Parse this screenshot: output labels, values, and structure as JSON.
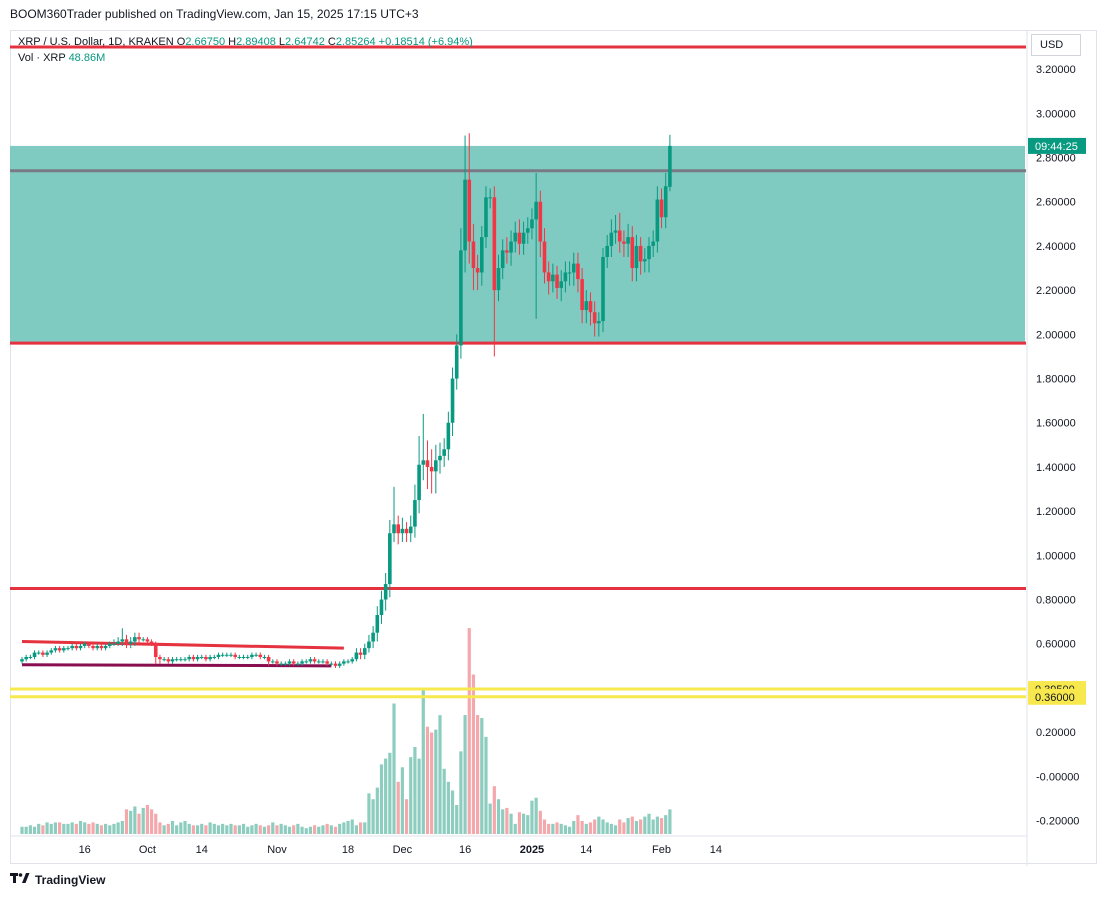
{
  "header": {
    "publisher_line": "BOOM360Trader published on TradingView.com, Jan 15, 2025 17:15 UTC+3"
  },
  "legend": {
    "symbol": "XRP / U.S. Dollar, 1D, KRAKEN",
    "o_label": "O",
    "o_value": "2.66750",
    "h_label": "H",
    "h_value": "2.89408",
    "l_label": "L",
    "l_value": "2.64742",
    "c_label": "C",
    "c_value": "2.85264",
    "change": "+0.18514 (+6.94%)",
    "vol_label": "Vol · XRP",
    "vol_value": "48.86M"
  },
  "currency": "USD",
  "colors": {
    "up": "#089981",
    "down": "#f23645",
    "zone": "#80cbc1",
    "hline": "#e5323f",
    "gray_line": "#787b86",
    "purple": "#880e4f",
    "yellow": "#f7e84e",
    "vol_up": "#8dcdbf",
    "vol_down": "#f4a8ac"
  },
  "footer": {
    "brand": "TradingView",
    "logo_icon": "tv-logo-icon"
  },
  "chart_data": {
    "type": "candlestick",
    "title": "XRP / U.S. Dollar, 1D, KRAKEN",
    "ylim": [
      -0.27,
      3.35
    ],
    "y_ticks": [
      "3.20000",
      "3.00000",
      "2.80000",
      "2.60000",
      "2.40000",
      "2.20000",
      "2.00000",
      "1.80000",
      "1.60000",
      "1.40000",
      "1.20000",
      "1.00000",
      "0.80000",
      "0.60000",
      "0.20000",
      "-0.00000",
      "-0.20000"
    ],
    "y_tick_values": [
      3.2,
      3.0,
      2.8,
      2.6,
      2.4,
      2.2,
      2.0,
      1.8,
      1.6,
      1.4,
      1.2,
      1.0,
      0.8,
      0.6,
      0.2,
      0.0,
      -0.2
    ],
    "x_ticks": [
      "16",
      "Oct",
      "14",
      "Nov",
      "18",
      "Dec",
      "16",
      "2025",
      "14",
      "Feb",
      "14"
    ],
    "x_tick_dates": [
      "2024-09-16",
      "2024-10-01",
      "2024-10-14",
      "2024-11-01",
      "2024-11-18",
      "2024-12-01",
      "2024-12-16",
      "2025-01-01",
      "2025-01-14",
      "2025-02-01",
      "2025-02-14"
    ],
    "first_date": "2024-09-01",
    "last_candle_date": "2025-01-15",
    "price_labels": [
      {
        "text": "09:44:25",
        "value": 2.85264,
        "color": "#089981"
      },
      {
        "text": "0.39500",
        "value": 0.395,
        "color": "#f7e84e"
      },
      {
        "text": "0.36000",
        "value": 0.36,
        "color": "#f7e84e"
      }
    ],
    "horizontal_lines": [
      {
        "value": 3.3,
        "color": "#e5323f"
      },
      {
        "value": 2.74,
        "color": "#787b86"
      },
      {
        "value": 1.96,
        "color": "#e5323f"
      },
      {
        "value": 0.85,
        "color": "#e5323f"
      },
      {
        "value": 0.395,
        "color": "#f7e84e"
      },
      {
        "value": 0.36,
        "color": "#f7e84e"
      }
    ],
    "zone": {
      "top": 2.85264,
      "bottom": 1.96
    },
    "trendlines": [
      {
        "start": [
          "2024-09-01",
          0.61
        ],
        "end": [
          "2024-11-17",
          0.58
        ],
        "color": "#e5323f"
      },
      {
        "start": [
          "2024-09-01",
          0.505
        ],
        "end": [
          "2024-11-14",
          0.5
        ],
        "color": "#880e4f"
      }
    ],
    "candles_close": [
      0.53,
      0.54,
      0.54,
      0.56,
      0.56,
      0.55,
      0.56,
      0.57,
      0.58,
      0.57,
      0.58,
      0.58,
      0.59,
      0.58,
      0.59,
      0.6,
      0.59,
      0.58,
      0.59,
      0.58,
      0.59,
      0.6,
      0.6,
      0.61,
      0.62,
      0.6,
      0.61,
      0.63,
      0.62,
      0.62,
      0.61,
      0.6,
      0.54,
      0.53,
      0.53,
      0.52,
      0.53,
      0.53,
      0.53,
      0.53,
      0.54,
      0.53,
      0.54,
      0.54,
      0.53,
      0.54,
      0.54,
      0.55,
      0.55,
      0.55,
      0.55,
      0.54,
      0.54,
      0.54,
      0.54,
      0.55,
      0.55,
      0.54,
      0.54,
      0.52,
      0.52,
      0.51,
      0.51,
      0.51,
      0.52,
      0.51,
      0.51,
      0.52,
      0.52,
      0.53,
      0.52,
      0.52,
      0.52,
      0.51,
      0.51,
      0.5,
      0.51,
      0.52,
      0.52,
      0.53,
      0.56,
      0.55,
      0.58,
      0.61,
      0.65,
      0.73,
      0.8,
      0.87,
      1.1,
      1.14,
      1.1,
      1.12,
      1.1,
      1.13,
      1.25,
      1.41,
      1.43,
      1.4,
      1.38,
      1.43,
      1.45,
      1.48,
      1.6,
      1.8,
      1.95,
      2.38,
      2.7,
      2.42,
      2.3,
      2.28,
      2.44,
      2.62,
      2.62,
      2.2,
      2.3,
      2.38,
      2.37,
      2.42,
      2.46,
      2.41,
      2.46,
      2.48,
      2.52,
      2.6,
      2.42,
      2.28,
      2.24,
      2.27,
      2.21,
      2.24,
      2.28,
      2.28,
      2.32,
      2.25,
      2.11,
      2.15,
      2.1,
      2.05,
      2.06,
      2.35,
      2.4,
      2.46,
      2.47,
      2.42,
      2.41,
      2.44,
      2.3,
      2.4,
      2.33,
      2.34,
      2.4,
      2.42,
      2.61,
      2.53,
      2.67,
      2.85264
    ],
    "candles_open": [
      0.52,
      0.53,
      0.54,
      0.54,
      0.56,
      0.56,
      0.55,
      0.56,
      0.57,
      0.58,
      0.57,
      0.58,
      0.58,
      0.59,
      0.58,
      0.59,
      0.6,
      0.59,
      0.58,
      0.59,
      0.58,
      0.59,
      0.6,
      0.6,
      0.61,
      0.62,
      0.6,
      0.61,
      0.63,
      0.62,
      0.62,
      0.61,
      0.6,
      0.54,
      0.53,
      0.53,
      0.52,
      0.53,
      0.53,
      0.53,
      0.53,
      0.54,
      0.53,
      0.54,
      0.54,
      0.53,
      0.54,
      0.54,
      0.55,
      0.55,
      0.55,
      0.55,
      0.54,
      0.54,
      0.54,
      0.54,
      0.55,
      0.55,
      0.54,
      0.54,
      0.52,
      0.52,
      0.51,
      0.51,
      0.51,
      0.52,
      0.51,
      0.51,
      0.52,
      0.52,
      0.53,
      0.52,
      0.52,
      0.52,
      0.51,
      0.51,
      0.5,
      0.51,
      0.52,
      0.52,
      0.53,
      0.56,
      0.55,
      0.58,
      0.61,
      0.65,
      0.73,
      0.8,
      0.87,
      1.1,
      1.14,
      1.1,
      1.12,
      1.1,
      1.13,
      1.25,
      1.41,
      1.43,
      1.4,
      1.38,
      1.43,
      1.45,
      1.48,
      1.6,
      1.8,
      1.95,
      2.38,
      2.7,
      2.42,
      2.3,
      2.28,
      2.44,
      2.62,
      2.62,
      2.2,
      2.3,
      2.38,
      2.37,
      2.42,
      2.46,
      2.41,
      2.46,
      2.48,
      2.52,
      2.6,
      2.42,
      2.28,
      2.24,
      2.27,
      2.21,
      2.24,
      2.28,
      2.28,
      2.32,
      2.25,
      2.11,
      2.15,
      2.1,
      2.05,
      2.06,
      2.35,
      2.4,
      2.46,
      2.47,
      2.42,
      2.41,
      2.44,
      2.3,
      2.4,
      2.33,
      2.34,
      2.4,
      2.42,
      2.61,
      2.53,
      2.6675
    ],
    "candles_high_pad": [
      0.01,
      0.01,
      0.01,
      0.01,
      0.01,
      0.01,
      0.01,
      0.01,
      0.01,
      0.01,
      0.01,
      0.01,
      0.01,
      0.01,
      0.01,
      0.01,
      0.01,
      0.01,
      0.01,
      0.01,
      0.01,
      0.01,
      0.02,
      0.02,
      0.05,
      0.02,
      0.02,
      0.02,
      0.02,
      0.01,
      0.01,
      0.01,
      0.01,
      0.01,
      0.01,
      0.01,
      0.01,
      0.01,
      0.01,
      0.01,
      0.01,
      0.01,
      0.01,
      0.01,
      0.01,
      0.01,
      0.01,
      0.01,
      0.01,
      0.01,
      0.01,
      0.01,
      0.01,
      0.01,
      0.01,
      0.01,
      0.01,
      0.01,
      0.01,
      0.01,
      0.01,
      0.01,
      0.01,
      0.01,
      0.01,
      0.01,
      0.01,
      0.01,
      0.01,
      0.01,
      0.01,
      0.01,
      0.01,
      0.01,
      0.01,
      0.01,
      0.01,
      0.01,
      0.01,
      0.01,
      0.02,
      0.02,
      0.02,
      0.03,
      0.03,
      0.04,
      0.04,
      0.05,
      0.06,
      0.17,
      0.04,
      0.05,
      0.03,
      0.05,
      0.07,
      0.13,
      0.21,
      0.09,
      0.08,
      0.07,
      0.06,
      0.05,
      0.05,
      0.05,
      0.05,
      0.1,
      0.2,
      0.21,
      0.08,
      0.06,
      0.05,
      0.05,
      0.04,
      0.05,
      0.06,
      0.05,
      0.06,
      0.05,
      0.05,
      0.06,
      0.05,
      0.05,
      0.05,
      0.13,
      0.05,
      0.06,
      0.05,
      0.05,
      0.04,
      0.05,
      0.05,
      0.05,
      0.05,
      0.05,
      0.05,
      0.05,
      0.04,
      0.05,
      0.04,
      0.04,
      0.05,
      0.06,
      0.07,
      0.08,
      0.05,
      0.06,
      0.05,
      0.05,
      0.04,
      0.05,
      0.04,
      0.05,
      0.06,
      0.05,
      0.06,
      0.05,
      0.06,
      0.04
    ],
    "candles_low_pad": [
      0.01,
      0.01,
      0.01,
      0.01,
      0.01,
      0.01,
      0.01,
      0.01,
      0.01,
      0.01,
      0.01,
      0.01,
      0.01,
      0.01,
      0.01,
      0.01,
      0.01,
      0.01,
      0.01,
      0.01,
      0.01,
      0.01,
      0.01,
      0.01,
      0.02,
      0.02,
      0.02,
      0.02,
      0.02,
      0.01,
      0.01,
      0.01,
      0.03,
      0.02,
      0.01,
      0.01,
      0.01,
      0.01,
      0.01,
      0.01,
      0.01,
      0.01,
      0.01,
      0.01,
      0.01,
      0.01,
      0.01,
      0.01,
      0.01,
      0.01,
      0.01,
      0.01,
      0.01,
      0.01,
      0.01,
      0.01,
      0.01,
      0.01,
      0.01,
      0.02,
      0.01,
      0.01,
      0.01,
      0.01,
      0.01,
      0.01,
      0.01,
      0.01,
      0.01,
      0.01,
      0.01,
      0.01,
      0.01,
      0.01,
      0.01,
      0.01,
      0.01,
      0.01,
      0.01,
      0.01,
      0.01,
      0.02,
      0.02,
      0.02,
      0.03,
      0.04,
      0.04,
      0.05,
      0.06,
      0.04,
      0.05,
      0.04,
      0.04,
      0.04,
      0.05,
      0.06,
      0.07,
      0.1,
      0.1,
      0.1,
      0.06,
      0.05,
      0.05,
      0.06,
      0.05,
      0.06,
      0.1,
      0.1,
      0.1,
      0.08,
      0.06,
      0.05,
      0.05,
      0.3,
      0.05,
      0.05,
      0.05,
      0.06,
      0.05,
      0.05,
      0.05,
      0.05,
      0.05,
      0.45,
      0.07,
      0.05,
      0.06,
      0.05,
      0.05,
      0.06,
      0.05,
      0.06,
      0.06,
      0.06,
      0.06,
      0.06,
      0.06,
      0.06,
      0.06,
      0.05,
      0.05,
      0.05,
      0.05,
      0.05,
      0.06,
      0.06,
      0.06,
      0.06,
      0.06,
      0.05,
      0.06,
      0.05,
      0.05,
      0.05,
      0.05,
      0.02
    ],
    "volume_relative": [
      0.05,
      0.05,
      0.06,
      0.05,
      0.07,
      0.06,
      0.08,
      0.07,
      0.08,
      0.08,
      0.07,
      0.07,
      0.08,
      0.07,
      0.09,
      0.08,
      0.07,
      0.08,
      0.07,
      0.06,
      0.07,
      0.06,
      0.07,
      0.08,
      0.09,
      0.17,
      0.16,
      0.19,
      0.14,
      0.18,
      0.2,
      0.17,
      0.14,
      0.08,
      0.06,
      0.07,
      0.09,
      0.06,
      0.08,
      0.09,
      0.07,
      0.06,
      0.06,
      0.07,
      0.06,
      0.08,
      0.07,
      0.06,
      0.07,
      0.06,
      0.07,
      0.06,
      0.06,
      0.07,
      0.05,
      0.06,
      0.07,
      0.06,
      0.05,
      0.06,
      0.08,
      0.06,
      0.07,
      0.06,
      0.05,
      0.06,
      0.07,
      0.05,
      0.04,
      0.05,
      0.06,
      0.05,
      0.06,
      0.07,
      0.06,
      0.05,
      0.07,
      0.08,
      0.09,
      0.1,
      0.06,
      0.08,
      0.08,
      0.28,
      0.24,
      0.32,
      0.48,
      0.52,
      0.56,
      0.9,
      0.36,
      0.46,
      0.24,
      0.53,
      0.6,
      0.52,
      1.0,
      0.74,
      0.7,
      0.72,
      0.82,
      0.45,
      0.36,
      0.3,
      0.2,
      0.57,
      0.82,
      1.42,
      1.1,
      0.82,
      0.8,
      0.67,
      0.21,
      0.33,
      0.24,
      0.17,
      0.18,
      0.14,
      0.07,
      0.15,
      0.14,
      0.13,
      0.23,
      0.25,
      0.16,
      0.1,
      0.07,
      0.07,
      0.08,
      0.07,
      0.06,
      0.05,
      0.09,
      0.13,
      0.09,
      0.07,
      0.08,
      0.1,
      0.12,
      0.1,
      0.08,
      0.07,
      0.06,
      0.1,
      0.08,
      0.11,
      0.12,
      0.09,
      0.1,
      0.12,
      0.14,
      0.1,
      0.12,
      0.11,
      0.13,
      0.17,
      0.16,
      0.18
    ],
    "y_scale_note": "log"
  }
}
